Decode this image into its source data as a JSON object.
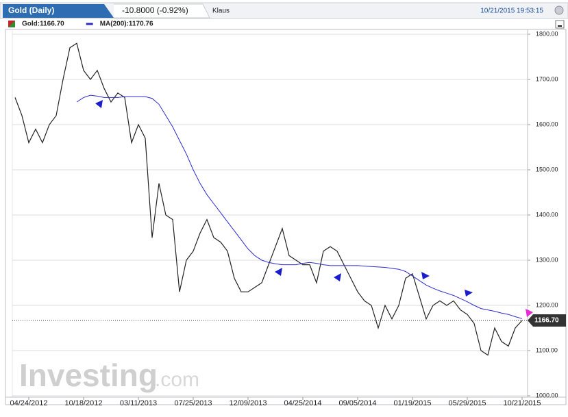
{
  "header": {
    "instrument": "Gold (Daily)",
    "change": "-10.8000 (-0.92%)",
    "user": "Klaus",
    "timestamp": "10/21/2015 19:53:15"
  },
  "watermark": {
    "brand": "Investing",
    "suffix": ".com"
  },
  "chart_data": {
    "type": "line",
    "categories": [
      null,
      null,
      "04/24/2012",
      null,
      null,
      null,
      null,
      null,
      null,
      null,
      "10/18/2012",
      null,
      null,
      null,
      null,
      null,
      null,
      null,
      "03/11/2013",
      null,
      null,
      null,
      null,
      null,
      null,
      null,
      "07/25/2013",
      null,
      null,
      null,
      null,
      null,
      null,
      null,
      "12/09/2013",
      null,
      null,
      null,
      null,
      null,
      null,
      null,
      "04/25/2014",
      null,
      null,
      null,
      null,
      null,
      null,
      null,
      "09/05/2014",
      null,
      null,
      null,
      null,
      null,
      null,
      null,
      "01/19/2015",
      null,
      null,
      null,
      null,
      null,
      null,
      null,
      "05/29/2015",
      null,
      null,
      null,
      null,
      null,
      null,
      null,
      "10/21/2015"
    ],
    "series": [
      {
        "name": "Gold:1166.70",
        "color": "#222222",
        "values": [
          1660,
          1620,
          1560,
          1590,
          1560,
          1600,
          1620,
          1700,
          1770,
          1780,
          1720,
          1700,
          1720,
          1680,
          1650,
          1670,
          1660,
          1560,
          1600,
          1570,
          1350,
          1470,
          1400,
          1390,
          1230,
          1300,
          1320,
          1360,
          1390,
          1350,
          1340,
          1320,
          1260,
          1230,
          1230,
          1240,
          1250,
          1290,
          1330,
          1370,
          1310,
          1300,
          1290,
          1290,
          1250,
          1320,
          1330,
          1320,
          1290,
          1260,
          1230,
          1210,
          1200,
          1150,
          1200,
          1170,
          1200,
          1260,
          1270,
          1220,
          1170,
          1200,
          1210,
          1200,
          1210,
          1190,
          1180,
          1160,
          1100,
          1090,
          1150,
          1120,
          1110,
          1150,
          1166.7
        ]
      },
      {
        "name": "MA(200):1170.76",
        "color": "#2a2ad0",
        "values": [
          null,
          null,
          null,
          null,
          null,
          null,
          null,
          null,
          null,
          1650,
          1660,
          1665,
          1663,
          1660,
          1660,
          1660,
          1662,
          1662,
          1662,
          1662,
          1658,
          1645,
          1620,
          1595,
          1565,
          1535,
          1500,
          1470,
          1445,
          1425,
          1405,
          1385,
          1365,
          1345,
          1325,
          1310,
          1300,
          1295,
          1292,
          1290,
          1290,
          1290,
          1293,
          1295,
          1293,
          1290,
          1288,
          1288,
          1288,
          1288,
          1288,
          1287,
          1286,
          1285,
          1284,
          1282,
          1280,
          1275,
          1265,
          1255,
          1245,
          1238,
          1232,
          1227,
          1222,
          1215,
          1208,
          1200,
          1193,
          1190,
          1187,
          1183,
          1180,
          1175,
          1170.76
        ]
      }
    ],
    "ylim": [
      1000,
      1800
    ],
    "yticks": [
      {
        "value": 1000,
        "label": "1000.00"
      },
      {
        "value": 1100,
        "label": "1100.00"
      },
      {
        "value": 1200,
        "label": "1200.00"
      },
      {
        "value": 1300,
        "label": "1300.00"
      },
      {
        "value": 1400,
        "label": "1400.00"
      },
      {
        "value": 1500,
        "label": "1500.00"
      },
      {
        "value": 1600,
        "label": "1600.00"
      },
      {
        "value": 1700,
        "label": "1700.00"
      },
      {
        "value": 1800,
        "label": "1800.00"
      }
    ],
    "grid": true,
    "price_tag": {
      "value": 1166.7,
      "label": "1166.70"
    }
  }
}
